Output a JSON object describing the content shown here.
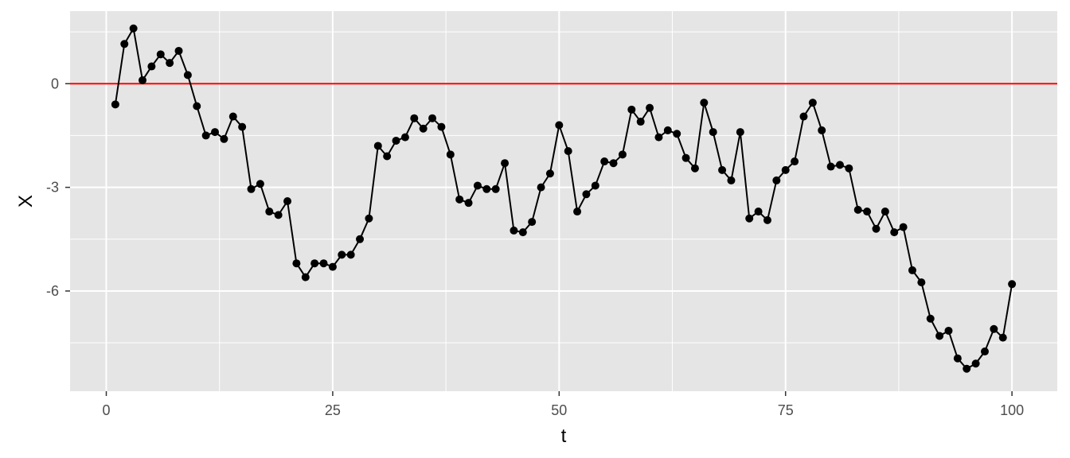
{
  "chart_data": {
    "type": "line",
    "title": "",
    "xlabel": "t",
    "ylabel": "X",
    "xlim": [
      -4,
      105
    ],
    "ylim": [
      -8.9,
      2.1
    ],
    "x_ticks": [
      0,
      25,
      50,
      75,
      100
    ],
    "x_tick_labels": [
      "0",
      "25",
      "50",
      "75",
      "100"
    ],
    "y_ticks": [
      0,
      -3,
      -6
    ],
    "y_tick_labels": [
      "0",
      "-3",
      "-6"
    ],
    "grid": true,
    "legend": "none",
    "reference_line": {
      "y": 0,
      "color": "#ff0000"
    },
    "colors": {
      "panel": "#e5e5e5",
      "grid": "#ffffff",
      "series": "#000000"
    },
    "series": [
      {
        "x": [
          1,
          2,
          3,
          4,
          5,
          6,
          7,
          8,
          9,
          10,
          11,
          12,
          13,
          14,
          15,
          16,
          17,
          18,
          19,
          20,
          21,
          22,
          23,
          24,
          25,
          26,
          27,
          28,
          29,
          30,
          31,
          32,
          33,
          34,
          35,
          36,
          37,
          38,
          39,
          40,
          41,
          42,
          43,
          44,
          45,
          46,
          47,
          48,
          49,
          50,
          51,
          52,
          53,
          54,
          55,
          56,
          57,
          58,
          59,
          60,
          61,
          62,
          63,
          64,
          65,
          66,
          67,
          68,
          69,
          70,
          71,
          72,
          73,
          74,
          75,
          76,
          77,
          78,
          79,
          80,
          81,
          82,
          83,
          84,
          85,
          86,
          87,
          88,
          89,
          90,
          91,
          92,
          93,
          94,
          95,
          96,
          97,
          98,
          99,
          100
        ],
        "values": [
          -0.6,
          1.15,
          1.6,
          0.1,
          0.5,
          0.85,
          0.6,
          0.95,
          0.25,
          -0.65,
          -1.5,
          -1.4,
          -1.6,
          -0.95,
          -1.25,
          -3.05,
          -2.9,
          -3.7,
          -3.8,
          -3.4,
          -5.2,
          -5.6,
          -5.2,
          -5.2,
          -5.3,
          -4.95,
          -4.95,
          -4.5,
          -3.9,
          -1.8,
          -2.1,
          -1.65,
          -1.55,
          -1.0,
          -1.3,
          -1.0,
          -1.25,
          -2.05,
          -3.35,
          -3.45,
          -2.95,
          -3.05,
          -3.05,
          -2.3,
          -4.25,
          -4.3,
          -4.0,
          -3.0,
          -2.6,
          -1.2,
          -1.95,
          -3.7,
          -3.2,
          -2.95,
          -2.25,
          -2.3,
          -2.05,
          -0.75,
          -1.1,
          -0.7,
          -1.55,
          -1.35,
          -1.45,
          -2.15,
          -2.45,
          -0.55,
          -1.4,
          -2.5,
          -2.8,
          -1.4,
          -3.9,
          -3.7,
          -3.95,
          -2.8,
          -2.5,
          -2.25,
          -0.95,
          -0.55,
          -1.35,
          -2.4,
          -2.35,
          -2.45,
          -3.65,
          -3.7,
          -4.2,
          -3.7,
          -4.3,
          -4.15,
          -5.4,
          -5.75,
          -6.8,
          -7.3,
          -7.15,
          -7.95,
          -8.25,
          -8.1,
          -7.75,
          -7.1,
          -7.35,
          -5.8
        ]
      }
    ]
  }
}
